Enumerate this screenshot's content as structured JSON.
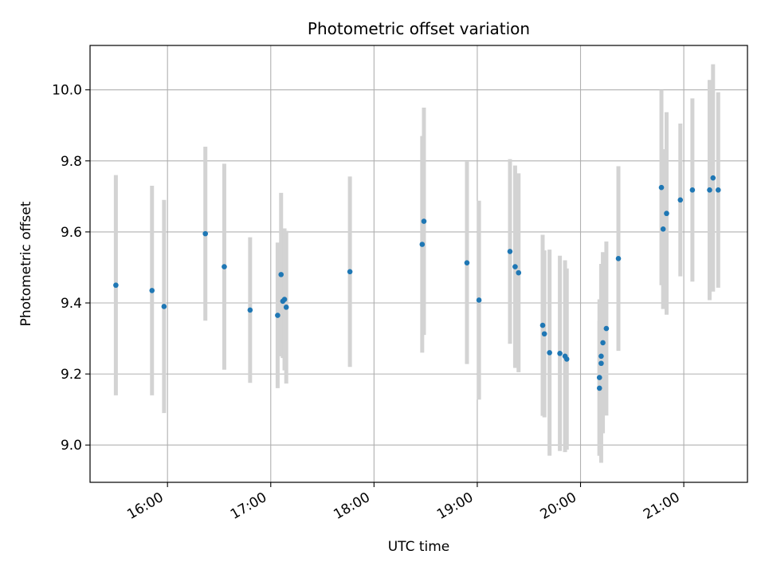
{
  "chart_data": {
    "type": "scatter",
    "title": "Photometric offset variation",
    "xlabel": "UTC time",
    "ylabel": "Photometric offset",
    "x_ticks": [
      "16:00",
      "17:00",
      "18:00",
      "19:00",
      "20:00",
      "21:00"
    ],
    "xlim": [
      "15:15",
      "21:37"
    ],
    "y_ticks": [
      "9.0",
      "9.2",
      "9.4",
      "9.6",
      "9.8",
      "10.0"
    ],
    "ylim": [
      8.895,
      10.125
    ],
    "grid": true,
    "colors": {
      "marker": "#1f77b4",
      "errorbar": "#d3d3d3",
      "grid": "#b0b0b0"
    },
    "points": [
      {
        "time": "15:30",
        "y": 9.45,
        "yerr": 0.31
      },
      {
        "time": "15:51",
        "y": 9.435,
        "yerr": 0.295
      },
      {
        "time": "15:58",
        "y": 9.39,
        "yerr": 0.3
      },
      {
        "time": "16:22",
        "y": 9.595,
        "yerr": 0.245
      },
      {
        "time": "16:33",
        "y": 9.502,
        "yerr": 0.29
      },
      {
        "time": "16:48",
        "y": 9.38,
        "yerr": 0.205
      },
      {
        "time": "17:04",
        "y": 9.365,
        "yerr": 0.205
      },
      {
        "time": "17:06",
        "y": 9.48,
        "yerr": 0.23
      },
      {
        "time": "17:07",
        "y": 9.405,
        "yerr": 0.16
      },
      {
        "time": "17:08",
        "y": 9.41,
        "yerr": 0.2
      },
      {
        "time": "17:09",
        "y": 9.388,
        "yerr": 0.215
      },
      {
        "time": "17:46",
        "y": 9.488,
        "yerr": 0.268
      },
      {
        "time": "18:28",
        "y": 9.565,
        "yerr": 0.305
      },
      {
        "time": "18:29",
        "y": 9.63,
        "yerr": 0.32
      },
      {
        "time": "18:54",
        "y": 9.513,
        "yerr": 0.285
      },
      {
        "time": "19:01",
        "y": 9.408,
        "yerr": 0.28
      },
      {
        "time": "19:19",
        "y": 9.545,
        "yerr": 0.26
      },
      {
        "time": "19:22",
        "y": 9.502,
        "yerr": 0.285
      },
      {
        "time": "19:24",
        "y": 9.485,
        "yerr": 0.28
      },
      {
        "time": "19:38",
        "y": 9.337,
        "yerr": 0.255
      },
      {
        "time": "19:39",
        "y": 9.313,
        "yerr": 0.235
      },
      {
        "time": "19:42",
        "y": 9.26,
        "yerr": 0.29
      },
      {
        "time": "19:48",
        "y": 9.258,
        "yerr": 0.275
      },
      {
        "time": "19:51",
        "y": 9.25,
        "yerr": 0.27
      },
      {
        "time": "19:52",
        "y": 9.242,
        "yerr": 0.255
      },
      {
        "time": "20:11",
        "y": 9.16,
        "yerr": 0.19
      },
      {
        "time": "20:11",
        "y": 9.19,
        "yerr": 0.22
      },
      {
        "time": "20:12",
        "y": 9.25,
        "yerr": 0.255
      },
      {
        "time": "20:12",
        "y": 9.23,
        "yerr": 0.28
      },
      {
        "time": "20:13",
        "y": 9.288,
        "yerr": 0.255
      },
      {
        "time": "20:15",
        "y": 9.328,
        "yerr": 0.245
      },
      {
        "time": "20:22",
        "y": 9.525,
        "yerr": 0.26
      },
      {
        "time": "20:47",
        "y": 9.725,
        "yerr": 0.275
      },
      {
        "time": "20:48",
        "y": 9.608,
        "yerr": 0.225
      },
      {
        "time": "20:50",
        "y": 9.652,
        "yerr": 0.285
      },
      {
        "time": "20:58",
        "y": 9.69,
        "yerr": 0.215
      },
      {
        "time": "21:05",
        "y": 9.718,
        "yerr": 0.258
      },
      {
        "time": "21:15",
        "y": 9.718,
        "yerr": 0.31
      },
      {
        "time": "21:17",
        "y": 9.752,
        "yerr": 0.32
      },
      {
        "time": "21:20",
        "y": 9.718,
        "yerr": 0.275
      }
    ]
  }
}
